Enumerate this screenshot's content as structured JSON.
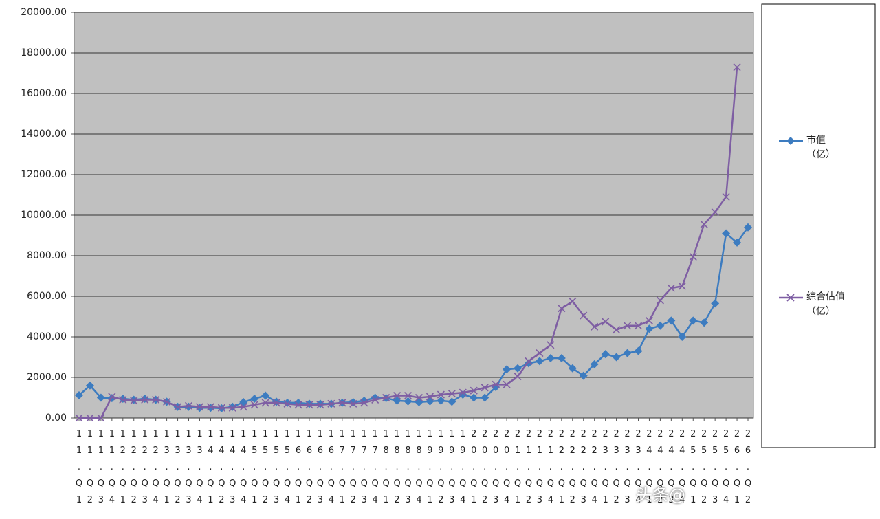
{
  "chart_data": {
    "type": "line",
    "categories": [
      "11.Q1",
      "11.Q2",
      "11.Q3",
      "11.Q4",
      "12.Q1",
      "12.Q2",
      "12.Q3",
      "12.Q4",
      "13.Q1",
      "13.Q2",
      "13.Q3",
      "13.Q4",
      "14.Q1",
      "14.Q2",
      "14.Q3",
      "14.Q4",
      "15.Q1",
      "15.Q2",
      "15.Q3",
      "15.Q4",
      "16.Q1",
      "16.Q2",
      "16.Q3",
      "16.Q4",
      "17.Q1",
      "17.Q2",
      "17.Q3",
      "17.Q4",
      "18.Q1",
      "18.Q2",
      "18.Q3",
      "18.Q4",
      "19.Q1",
      "19.Q2",
      "19.Q3",
      "19.Q4",
      "20.Q1",
      "20.Q2",
      "20.Q3",
      "20.Q4",
      "21.Q1",
      "21.Q2",
      "21.Q3",
      "21.Q4",
      "22.Q1",
      "22.Q2",
      "22.Q3",
      "22.Q4",
      "23.Q1",
      "23.Q2",
      "23.Q3",
      "23.Q4",
      "24.Q1",
      "24.Q2",
      "24.Q3",
      "24.Q4",
      "25.Q1",
      "25.Q2",
      "25.Q3",
      "25.Q4",
      "26.Q1",
      "26.Q2"
    ],
    "series": [
      {
        "name": "市值（亿）",
        "color": "#3d7cc0",
        "marker": "diamond",
        "values": [
          1120,
          1600,
          1000,
          980,
          950,
          900,
          950,
          900,
          800,
          550,
          550,
          500,
          500,
          480,
          550,
          780,
          950,
          1100,
          800,
          750,
          750,
          700,
          700,
          700,
          750,
          780,
          850,
          1000,
          980,
          850,
          820,
          780,
          820,
          850,
          800,
          1150,
          1000,
          1000,
          1520,
          2400,
          2450,
          2700,
          2800,
          2950,
          2950,
          2450,
          2080,
          2650,
          3150,
          3000,
          3200,
          3300,
          4400,
          4550,
          4800,
          4000,
          4800,
          4700,
          5650,
          9100,
          8650,
          9400
        ]
      },
      {
        "name": "综合估值（亿）",
        "color": "#7e5ea3",
        "marker": "x",
        "values": [
          0,
          0,
          0,
          1050,
          900,
          850,
          900,
          900,
          800,
          550,
          600,
          550,
          550,
          500,
          500,
          550,
          650,
          750,
          750,
          700,
          650,
          650,
          650,
          700,
          750,
          700,
          750,
          900,
          1000,
          1100,
          1100,
          1000,
          1050,
          1150,
          1200,
          1250,
          1350,
          1500,
          1650,
          1650,
          2050,
          2800,
          3200,
          3600,
          5400,
          5750,
          5050,
          4500,
          4750,
          4350,
          4550,
          4550,
          4800,
          5800,
          6400,
          6500,
          7950,
          9550,
          10150,
          10900,
          17300,
          null
        ]
      }
    ],
    "ylim": [
      0,
      20000
    ],
    "yticks": [
      {
        "value": 0,
        "label": "0.00"
      },
      {
        "value": 2000,
        "label": "2000.00"
      },
      {
        "value": 4000,
        "label": "4000.00"
      },
      {
        "value": 6000,
        "label": "6000.00"
      },
      {
        "value": 8000,
        "label": "8000.00"
      },
      {
        "value": 10000,
        "label": "10000.00"
      },
      {
        "value": 12000,
        "label": "12000.00"
      },
      {
        "value": 14000,
        "label": "14000.00"
      },
      {
        "value": 16000,
        "label": "16000.00"
      },
      {
        "value": 18000,
        "label": "18000.00"
      },
      {
        "value": 20000,
        "label": "20000.00"
      }
    ],
    "grid": true,
    "legend": "right",
    "watermark": "头条@"
  }
}
